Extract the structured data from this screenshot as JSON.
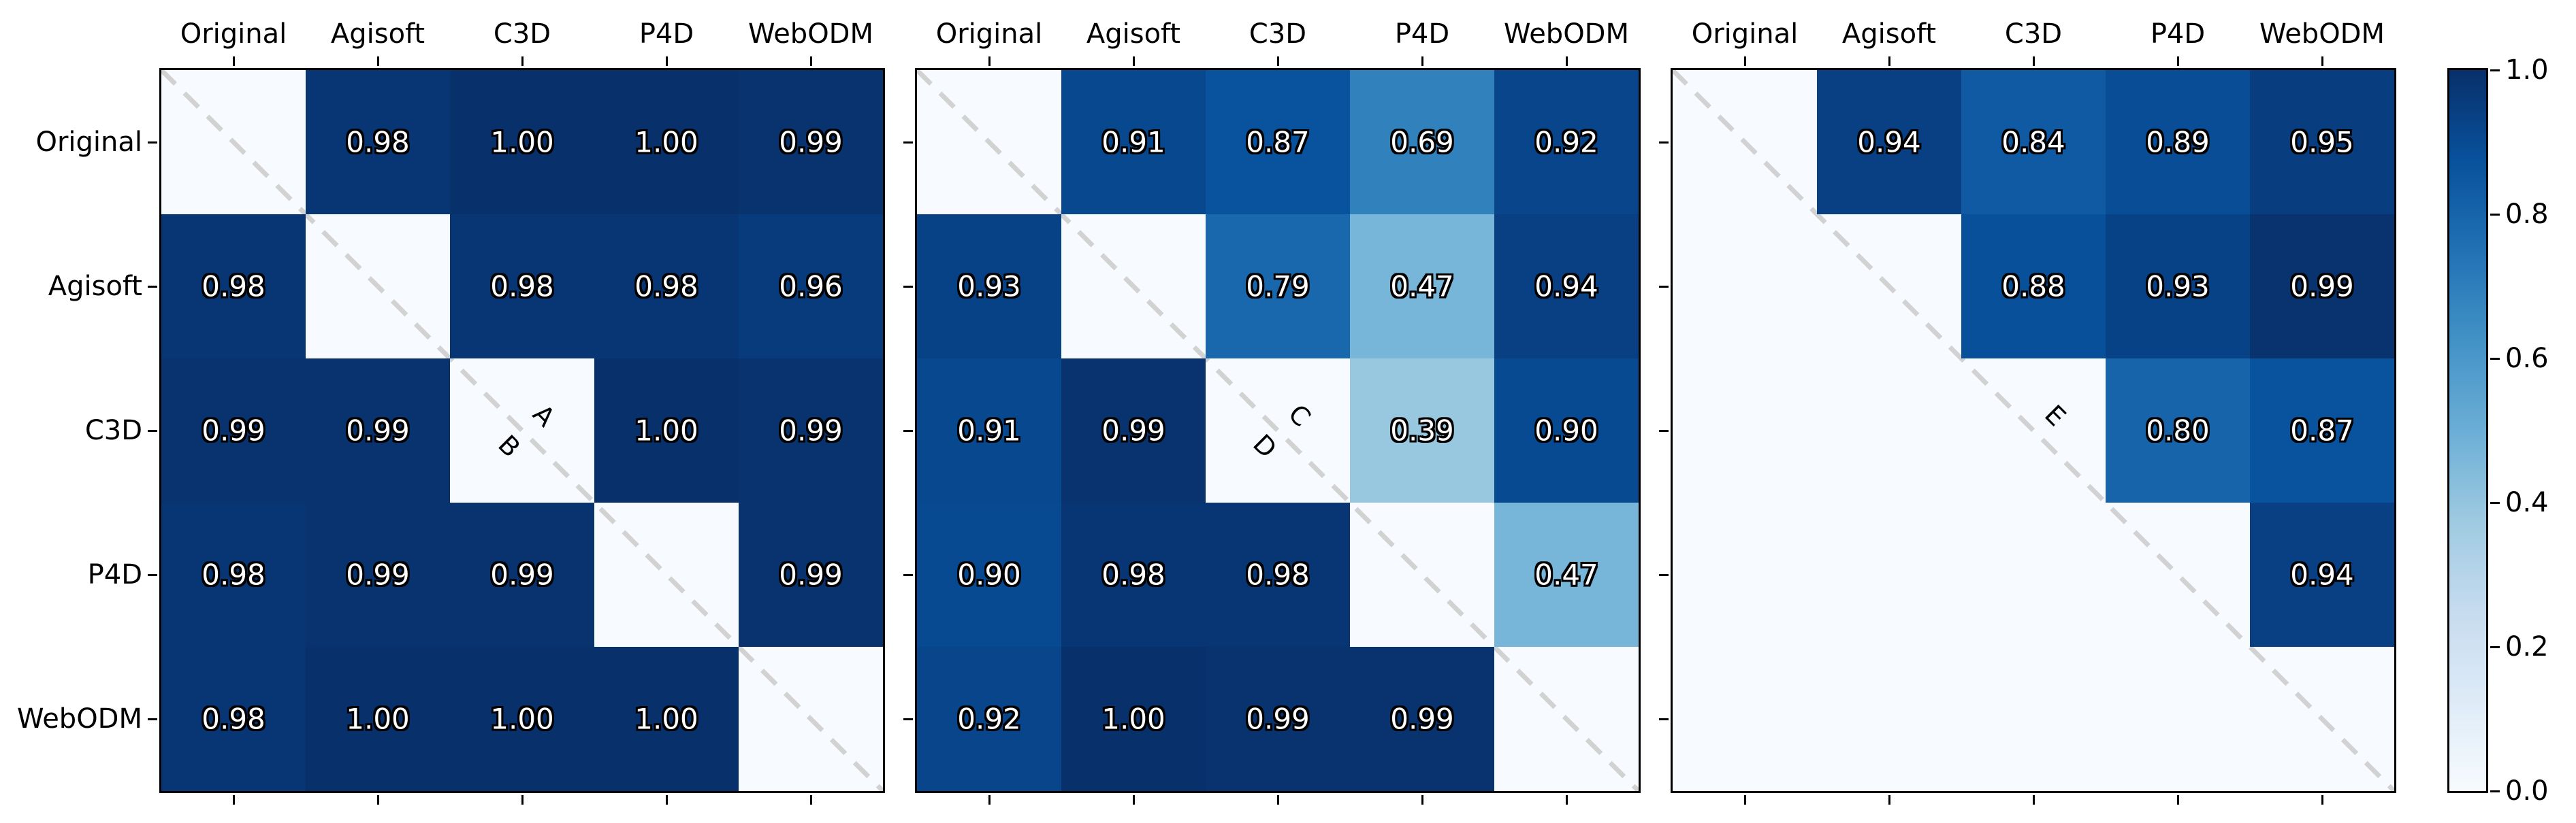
{
  "figure": {
    "background": "#ffffff",
    "axes_background": "#f7fbff",
    "spine_color": "#000000",
    "diagonal_line_color": "#d2d2d2",
    "label_color": "#000000",
    "cell_text_color": "#ffffff",
    "cell_text_outline_color": "#000000"
  },
  "colormap": {
    "name": "Blues",
    "positions": [
      0,
      0.125,
      0.25,
      0.375,
      0.5,
      0.625,
      0.75,
      0.875,
      1
    ],
    "colors": [
      "#f7fbff",
      "#deebf7",
      "#c6dbef",
      "#9ecae1",
      "#6baed6",
      "#4292c6",
      "#2171b5",
      "#08519c",
      "#08306b"
    ]
  },
  "chart_data": [
    {
      "type": "heatmap",
      "x_categories": [
        "Original",
        "Agisoft",
        "C3D",
        "P4D",
        "WebODM"
      ],
      "y_categories": [
        "Original",
        "Agisoft",
        "C3D",
        "P4D",
        "WebODM"
      ],
      "values": [
        [
          null,
          0.98,
          1.0,
          1.0,
          0.99
        ],
        [
          0.98,
          null,
          0.98,
          0.98,
          0.96
        ],
        [
          0.99,
          0.99,
          null,
          1.0,
          0.99
        ],
        [
          0.98,
          0.99,
          0.99,
          null,
          0.99
        ],
        [
          0.98,
          1.0,
          1.0,
          1.0,
          null
        ]
      ],
      "vmin": 0,
      "vmax": 1,
      "show_y_labels": true,
      "diagonal_labels": [
        {
          "text": "A",
          "side": "above"
        },
        {
          "text": "B",
          "side": "below"
        }
      ]
    },
    {
      "type": "heatmap",
      "x_categories": [
        "Original",
        "Agisoft",
        "C3D",
        "P4D",
        "WebODM"
      ],
      "y_categories": [
        "Original",
        "Agisoft",
        "C3D",
        "P4D",
        "WebODM"
      ],
      "values": [
        [
          null,
          0.91,
          0.87,
          0.69,
          0.92
        ],
        [
          0.93,
          null,
          0.79,
          0.47,
          0.94
        ],
        [
          0.91,
          0.99,
          null,
          0.39,
          0.9
        ],
        [
          0.9,
          0.98,
          0.98,
          null,
          0.47
        ],
        [
          0.92,
          1.0,
          0.99,
          0.99,
          null
        ]
      ],
      "vmin": 0,
      "vmax": 1,
      "show_y_labels": false,
      "diagonal_labels": [
        {
          "text": "C",
          "side": "above"
        },
        {
          "text": "D",
          "side": "below"
        }
      ]
    },
    {
      "type": "heatmap",
      "x_categories": [
        "Original",
        "Agisoft",
        "C3D",
        "P4D",
        "WebODM"
      ],
      "y_categories": [
        "Original",
        "Agisoft",
        "C3D",
        "P4D",
        "WebODM"
      ],
      "values": [
        [
          null,
          0.94,
          0.84,
          0.89,
          0.95
        ],
        [
          null,
          null,
          0.88,
          0.93,
          0.99
        ],
        [
          null,
          null,
          null,
          0.8,
          0.87
        ],
        [
          null,
          null,
          null,
          null,
          0.94
        ],
        [
          null,
          null,
          null,
          null,
          null
        ]
      ],
      "vmin": 0,
      "vmax": 1,
      "show_y_labels": false,
      "diagonal_labels": [
        {
          "text": "E",
          "side": "above"
        }
      ]
    }
  ],
  "colorbar": {
    "orientation": "vertical",
    "vmin": 0.0,
    "vmax": 1.0,
    "tick_labels": [
      "1.0",
      "0.8",
      "0.6",
      "0.4",
      "0.2",
      "0.0"
    ]
  }
}
